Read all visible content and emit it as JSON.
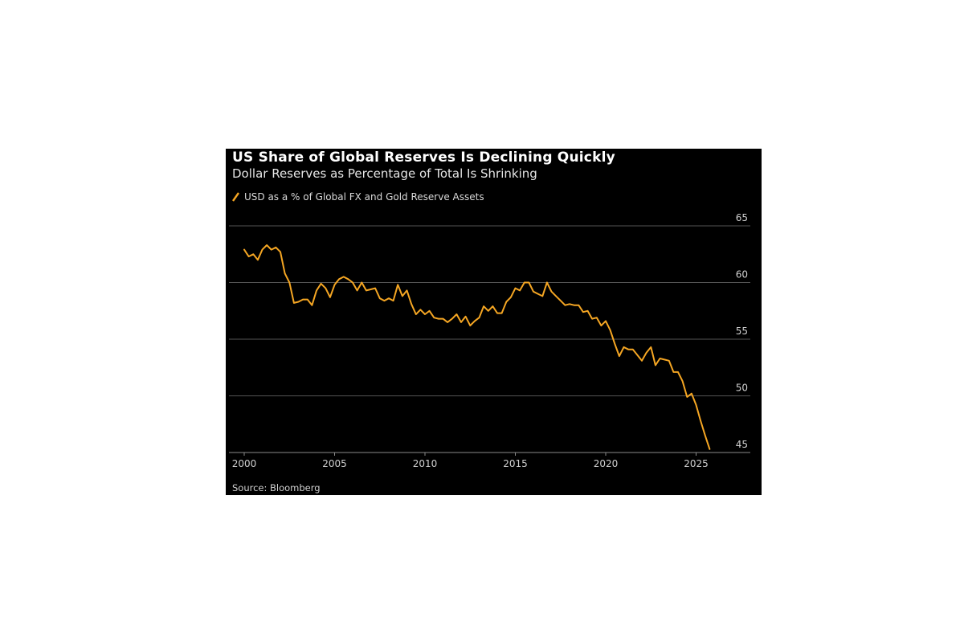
{
  "chart_data": {
    "type": "line",
    "title": "US Share of Global Reserves Is Declining Quickly",
    "subtitle": "Dollar Reserves as Percentage of Total Is Shrinking",
    "source": "Source: Bloomberg",
    "xlabel": "",
    "ylabel": "",
    "xlim": [
      2000,
      2028
    ],
    "ylim": [
      45,
      65
    ],
    "x_ticks": [
      2000,
      2005,
      2010,
      2015,
      2020,
      2025
    ],
    "y_ticks": [
      45,
      50,
      55,
      60,
      65
    ],
    "grid": "horizontal",
    "y_axis_side": "right",
    "legend_placement": "top-left",
    "series": [
      {
        "name": "USD as a % of Global FX and Gold Reserve Assets",
        "color": "#f5a623",
        "x": [
          2000.0,
          2000.25,
          2000.5,
          2000.75,
          2001.0,
          2001.25,
          2001.5,
          2001.75,
          2002.0,
          2002.25,
          2002.5,
          2002.75,
          2003.0,
          2003.25,
          2003.5,
          2003.75,
          2004.0,
          2004.25,
          2004.5,
          2004.75,
          2005.0,
          2005.25,
          2005.5,
          2005.75,
          2006.0,
          2006.25,
          2006.5,
          2006.75,
          2007.0,
          2007.25,
          2007.5,
          2007.75,
          2008.0,
          2008.25,
          2008.5,
          2008.75,
          2009.0,
          2009.25,
          2009.5,
          2009.75,
          2010.0,
          2010.25,
          2010.5,
          2010.75,
          2011.0,
          2011.25,
          2011.5,
          2011.75,
          2012.0,
          2012.25,
          2012.5,
          2012.75,
          2013.0,
          2013.25,
          2013.5,
          2013.75,
          2014.0,
          2014.25,
          2014.5,
          2014.75,
          2015.0,
          2015.25,
          2015.5,
          2015.75,
          2016.0,
          2016.25,
          2016.5,
          2016.75,
          2017.0,
          2017.25,
          2017.5,
          2017.75,
          2018.0,
          2018.25,
          2018.5,
          2018.75,
          2019.0,
          2019.25,
          2019.5,
          2019.75,
          2020.0,
          2020.25,
          2020.5,
          2020.75,
          2021.0,
          2021.25,
          2021.5,
          2021.75,
          2022.0,
          2022.25,
          2022.5,
          2022.75,
          2023.0,
          2023.25,
          2023.5,
          2023.75,
          2024.0,
          2024.25,
          2024.5,
          2024.75,
          2025.0,
          2025.25,
          2025.5,
          2025.75
        ],
        "values": [
          62.9,
          62.3,
          62.5,
          62.0,
          62.9,
          63.3,
          62.9,
          63.1,
          62.7,
          60.8,
          60.0,
          58.2,
          58.3,
          58.5,
          58.5,
          58.0,
          59.3,
          59.9,
          59.5,
          58.7,
          59.8,
          60.3,
          60.5,
          60.3,
          60.0,
          59.3,
          60.0,
          59.3,
          59.4,
          59.5,
          58.6,
          58.4,
          58.6,
          58.4,
          59.8,
          58.8,
          59.3,
          58.1,
          57.2,
          57.6,
          57.2,
          57.5,
          56.9,
          56.8,
          56.8,
          56.5,
          56.8,
          57.2,
          56.5,
          57.0,
          56.2,
          56.6,
          56.9,
          57.9,
          57.5,
          57.9,
          57.3,
          57.3,
          58.3,
          58.7,
          59.5,
          59.3,
          60.0,
          60.0,
          59.2,
          59.0,
          58.8,
          60.0,
          59.2,
          58.8,
          58.4,
          58.0,
          58.1,
          58.0,
          58.0,
          57.4,
          57.5,
          56.8,
          56.9,
          56.2,
          56.6,
          55.8,
          54.6,
          53.5,
          54.3,
          54.1,
          54.1,
          53.6,
          53.1,
          53.8,
          54.3,
          52.7,
          53.3,
          53.2,
          53.1,
          52.1,
          52.1,
          51.3,
          49.9,
          50.2,
          49.2,
          47.8,
          46.5,
          45.3
        ]
      }
    ]
  }
}
